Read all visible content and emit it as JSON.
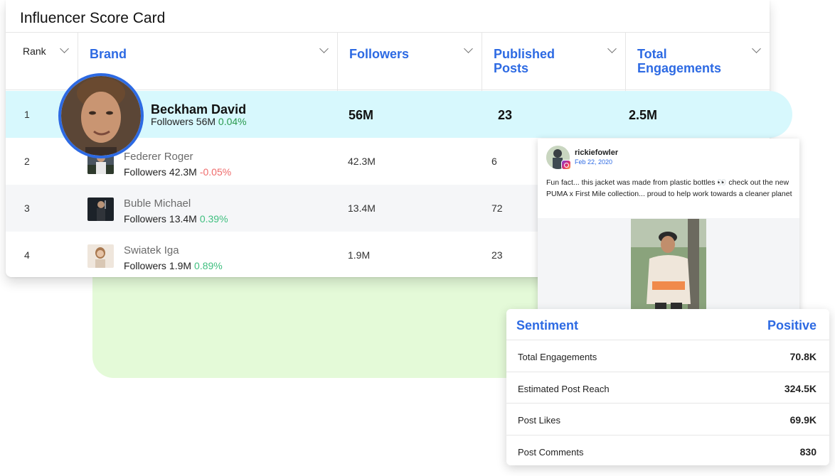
{
  "card": {
    "title": "Influencer Score Card",
    "columns": [
      {
        "label": "Rank"
      },
      {
        "label": "Brand"
      },
      {
        "label": "Followers"
      },
      {
        "label": "Published Posts"
      },
      {
        "label": "Total Engagements"
      }
    ],
    "top": {
      "rank": "1",
      "name": "Beckham David",
      "followers_label": "Followers",
      "followers_value": "56M",
      "change": "0.04%",
      "followers": "56M",
      "posts": "23",
      "engagements": "2.5M"
    },
    "rows": [
      {
        "rank": "2",
        "name": "Federer Roger",
        "followers_label": "Followers",
        "followers_value": "42.3M",
        "change": "-0.05%",
        "followers": "42.3M",
        "posts": "6"
      },
      {
        "rank": "3",
        "name": "Buble Michael",
        "followers_label": "Followers",
        "followers_value": "13.4M",
        "change": "0.39%",
        "followers": "13.4M",
        "posts": "72"
      },
      {
        "rank": "4",
        "name": "Swiatek Iga",
        "followers_label": "Followers",
        "followers_value": "1.9M",
        "change": "0.89%",
        "followers": "1.9M",
        "posts": "23"
      }
    ]
  },
  "post": {
    "username": "rickiefowler",
    "date": "Feb 22, 2020",
    "text": "Fun fact... this jacket was made from plastic bottles 👀 check out the new PUMA x First Mile collection... proud to help work towards a cleaner planet"
  },
  "sentiment": {
    "title": "Sentiment",
    "value": "Positive",
    "rows": [
      {
        "label": "Total Engagements",
        "value": "70.8K"
      },
      {
        "label": "Estimated Post Reach",
        "value": "324.5K"
      },
      {
        "label": "Post Likes",
        "value": "69.9K"
      },
      {
        "label": "Post Comments",
        "value": "830"
      }
    ]
  },
  "colors": {
    "accent": "#2d6ae3",
    "highlight_row": "#d7f8fd",
    "green_panel": "#e4fad8",
    "positive": "#3fbf7f",
    "negative": "#ef6b6b"
  }
}
